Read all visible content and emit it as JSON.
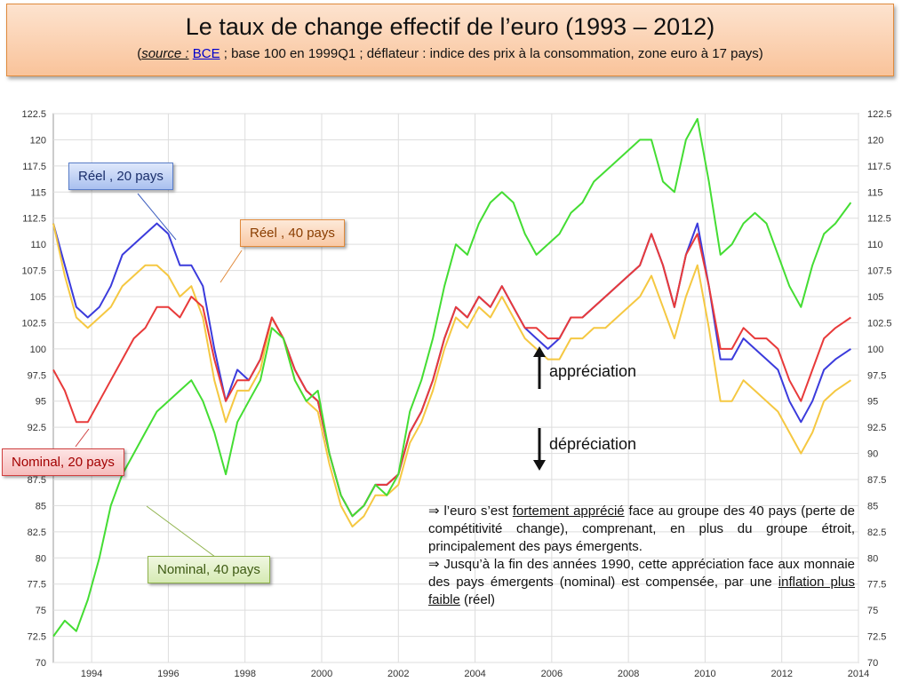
{
  "header": {
    "title": "Le taux de change effectif de l’euro (1993 – 2012)",
    "sub_open": "(",
    "source_label": "source :",
    "source_link": "BCE",
    "sub_rest": " ; base 100 en 1999Q1 ; déflateur : indice des prix à la consommation, zone euro à 17 pays)"
  },
  "labels": {
    "reel20": "Réel , 20 pays",
    "reel40": "Réel , 40 pays",
    "nom20": "Nominal, 20 pays",
    "nom40": "Nominal, 40 pays",
    "appreciation": "appréciation",
    "depreciation": "dépréciation"
  },
  "note": {
    "p1_a": "⇒ l’euro s’est ",
    "p1_u": "fortement apprécié",
    "p1_b": " face au groupe des 40 pays (perte de compétitivité change), comprenant, en plus du groupe étroit, principalement des pays émergents.",
    "p2_a": "⇒ Jusqu’à la fin des années 1990, cette appréciation face aux monnaie des pays émergents (nominal) est compensée, par une ",
    "p2_u": "inflation plus faible",
    "p2_b": " (réel)"
  },
  "colors": {
    "reel20": "#3b3bdc",
    "reel40": "#f5c842",
    "nom20": "#e83a3a",
    "nom40": "#44dd33"
  },
  "chart_data": {
    "type": "line",
    "xlim": [
      1993,
      2014
    ],
    "ylim": [
      70,
      122.5
    ],
    "xticks": [
      "1994",
      "1996",
      "1998",
      "2000",
      "2002",
      "2004",
      "2006",
      "2008",
      "2010",
      "2012",
      "2014"
    ],
    "yticks": [
      "70",
      "72.5",
      "75",
      "77.5",
      "80",
      "82.5",
      "85",
      "87.5",
      "90",
      "92.5",
      "95",
      "97.5",
      "100",
      "102.5",
      "105",
      "107.5",
      "110",
      "112.5",
      "115",
      "117.5",
      "120",
      "122.5"
    ],
    "grid": true,
    "series": [
      {
        "name": "Réel , 20 pays",
        "key": "reel20",
        "x": [
          1993,
          1993.3,
          1993.6,
          1993.9,
          1994.2,
          1994.5,
          1994.8,
          1995.1,
          1995.4,
          1995.7,
          1996,
          1996.3,
          1996.6,
          1996.9,
          1997.2,
          1997.5,
          1997.8,
          1998.1,
          1998.4,
          1998.7,
          1999,
          1999.3,
          1999.6,
          1999.9,
          2000.2,
          2000.5,
          2000.8,
          2001.1,
          2001.4,
          2001.7,
          2002,
          2002.3,
          2002.6,
          2002.9,
          2003.2,
          2003.5,
          2003.8,
          2004.1,
          2004.4,
          2004.7,
          2005,
          2005.3,
          2005.6,
          2005.9,
          2006.2,
          2006.5,
          2006.8,
          2007.1,
          2007.4,
          2007.7,
          2008,
          2008.3,
          2008.6,
          2008.9,
          2009.2,
          2009.5,
          2009.8,
          2010.1,
          2010.4,
          2010.7,
          2011,
          2011.3,
          2011.6,
          2011.9,
          2012.2,
          2012.5,
          2012.8,
          2013.1,
          2013.4,
          2013.8
        ],
        "values": [
          112,
          108,
          104,
          103,
          104,
          106,
          109,
          110,
          111,
          112,
          111,
          108,
          108,
          106,
          100,
          95,
          98,
          97,
          99,
          103,
          101,
          98,
          96,
          95,
          90,
          86,
          84,
          85,
          87,
          87,
          88,
          92,
          94,
          97,
          101,
          104,
          103,
          105,
          104,
          106,
          104,
          102,
          101,
          100,
          101,
          103,
          103,
          104,
          105,
          106,
          107,
          108,
          111,
          108,
          104,
          109,
          112,
          106,
          99,
          99,
          101,
          100,
          99,
          98,
          95,
          93,
          95,
          98,
          99,
          100
        ]
      },
      {
        "name": "Réel , 40 pays",
        "key": "reel40",
        "x": [
          1993,
          1993.3,
          1993.6,
          1993.9,
          1994.2,
          1994.5,
          1994.8,
          1995.1,
          1995.4,
          1995.7,
          1996,
          1996.3,
          1996.6,
          1996.9,
          1997.2,
          1997.5,
          1997.8,
          1998.1,
          1998.4,
          1998.7,
          1999,
          1999.3,
          1999.6,
          1999.9,
          2000.2,
          2000.5,
          2000.8,
          2001.1,
          2001.4,
          2001.7,
          2002,
          2002.3,
          2002.6,
          2002.9,
          2003.2,
          2003.5,
          2003.8,
          2004.1,
          2004.4,
          2004.7,
          2005,
          2005.3,
          2005.6,
          2005.9,
          2006.2,
          2006.5,
          2006.8,
          2007.1,
          2007.4,
          2007.7,
          2008,
          2008.3,
          2008.6,
          2008.9,
          2009.2,
          2009.5,
          2009.8,
          2010.1,
          2010.4,
          2010.7,
          2011,
          2011.3,
          2011.6,
          2011.9,
          2012.2,
          2012.5,
          2012.8,
          2013.1,
          2013.4,
          2013.8
        ],
        "values": [
          112,
          107,
          103,
          102,
          103,
          104,
          106,
          107,
          108,
          108,
          107,
          105,
          106,
          103,
          97,
          93,
          96,
          96,
          98,
          103,
          101,
          97,
          95,
          94,
          89,
          85,
          83,
          84,
          86,
          86,
          87,
          91,
          93,
          96,
          100,
          103,
          102,
          104,
          103,
          105,
          103,
          101,
          100,
          99,
          99,
          101,
          101,
          102,
          102,
          103,
          104,
          105,
          107,
          104,
          101,
          105,
          108,
          102,
          95,
          95,
          97,
          96,
          95,
          94,
          92,
          90,
          92,
          95,
          96,
          97
        ]
      },
      {
        "name": "Nominal, 20 pays",
        "key": "nom20",
        "x": [
          1993,
          1993.3,
          1993.6,
          1993.9,
          1994.2,
          1994.5,
          1994.8,
          1995.1,
          1995.4,
          1995.7,
          1996,
          1996.3,
          1996.6,
          1996.9,
          1997.2,
          1997.5,
          1997.8,
          1998.1,
          1998.4,
          1998.7,
          1999,
          1999.3,
          1999.6,
          1999.9,
          2000.2,
          2000.5,
          2000.8,
          2001.1,
          2001.4,
          2001.7,
          2002,
          2002.3,
          2002.6,
          2002.9,
          2003.2,
          2003.5,
          2003.8,
          2004.1,
          2004.4,
          2004.7,
          2005,
          2005.3,
          2005.6,
          2005.9,
          2006.2,
          2006.5,
          2006.8,
          2007.1,
          2007.4,
          2007.7,
          2008,
          2008.3,
          2008.6,
          2008.9,
          2009.2,
          2009.5,
          2009.8,
          2010.1,
          2010.4,
          2010.7,
          2011,
          2011.3,
          2011.6,
          2011.9,
          2012.2,
          2012.5,
          2012.8,
          2013.1,
          2013.4,
          2013.8
        ],
        "values": [
          98,
          96,
          93,
          93,
          95,
          97,
          99,
          101,
          102,
          104,
          104,
          103,
          105,
          104,
          99,
          95,
          97,
          97,
          99,
          103,
          101,
          98,
          96,
          95,
          90,
          86,
          84,
          85,
          87,
          87,
          88,
          92,
          94,
          97,
          101,
          104,
          103,
          105,
          104,
          106,
          104,
          102,
          102,
          101,
          101,
          103,
          103,
          104,
          105,
          106,
          107,
          108,
          111,
          108,
          104,
          109,
          111,
          106,
          100,
          100,
          102,
          101,
          101,
          100,
          97,
          95,
          98,
          101,
          102,
          103
        ]
      },
      {
        "name": "Nominal, 40 pays",
        "key": "nom40",
        "x": [
          1993,
          1993.3,
          1993.6,
          1993.9,
          1994.2,
          1994.5,
          1994.8,
          1995.1,
          1995.4,
          1995.7,
          1996,
          1996.3,
          1996.6,
          1996.9,
          1997.2,
          1997.5,
          1997.8,
          1998.1,
          1998.4,
          1998.7,
          1999,
          1999.3,
          1999.6,
          1999.9,
          2000.2,
          2000.5,
          2000.8,
          2001.1,
          2001.4,
          2001.7,
          2002,
          2002.3,
          2002.6,
          2002.9,
          2003.2,
          2003.5,
          2003.8,
          2004.1,
          2004.4,
          2004.7,
          2005,
          2005.3,
          2005.6,
          2005.9,
          2006.2,
          2006.5,
          2006.8,
          2007.1,
          2007.4,
          2007.7,
          2008,
          2008.3,
          2008.6,
          2008.9,
          2009.2,
          2009.5,
          2009.8,
          2010.1,
          2010.4,
          2010.7,
          2011,
          2011.3,
          2011.6,
          2011.9,
          2012.2,
          2012.5,
          2012.8,
          2013.1,
          2013.4,
          2013.8
        ],
        "values": [
          72.5,
          74,
          73,
          76,
          80,
          85,
          88,
          90,
          92,
          94,
          95,
          96,
          97,
          95,
          92,
          88,
          93,
          95,
          97,
          102,
          101,
          97,
          95,
          96,
          90,
          86,
          84,
          85,
          87,
          86,
          88,
          94,
          97,
          101,
          106,
          110,
          109,
          112,
          114,
          115,
          114,
          111,
          109,
          110,
          111,
          113,
          114,
          116,
          117,
          118,
          119,
          120,
          120,
          116,
          115,
          120,
          122,
          116,
          109,
          110,
          112,
          113,
          112,
          109,
          106,
          104,
          108,
          111,
          112,
          114
        ]
      }
    ]
  }
}
